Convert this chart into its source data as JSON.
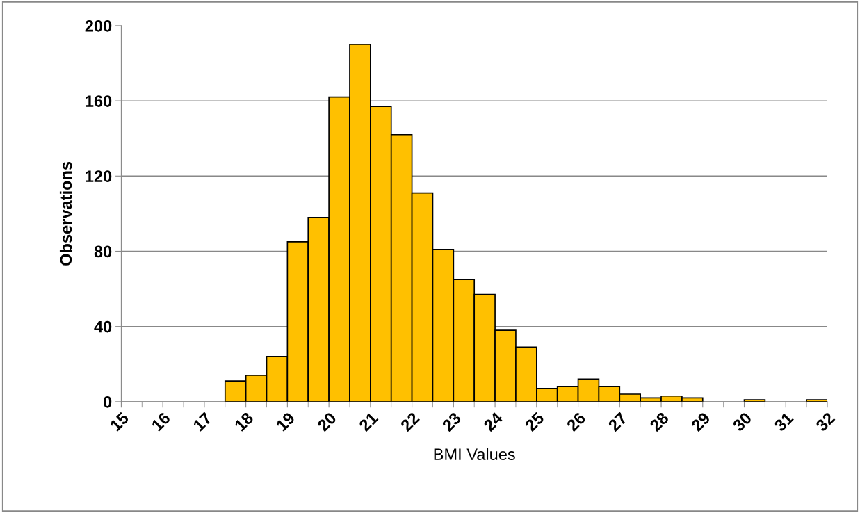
{
  "chart_data": {
    "type": "histogram",
    "xlabel": "BMI Values",
    "ylabel": "Observations",
    "bins": [
      15,
      15.5,
      16,
      16.5,
      17,
      17.5,
      18,
      18.5,
      19,
      19.5,
      20,
      20.5,
      21,
      21.5,
      22,
      22.5,
      23,
      23.5,
      24,
      24.5,
      25,
      25.5,
      26,
      26.5,
      27,
      27.5,
      28,
      28.5,
      29,
      29.5,
      30,
      30.5,
      31,
      31.5,
      32
    ],
    "values": [
      0,
      0,
      0,
      0,
      0,
      11,
      14,
      24,
      85,
      98,
      162,
      190,
      157,
      142,
      111,
      81,
      65,
      57,
      38,
      29,
      7,
      8,
      12,
      8,
      4,
      2,
      3,
      2,
      0,
      0,
      1,
      0,
      0,
      1
    ],
    "color": "#ffc000",
    "xlim": [
      15,
      32
    ],
    "xticks": [
      15,
      16,
      17,
      18,
      19,
      20,
      21,
      22,
      23,
      24,
      25,
      26,
      27,
      28,
      29,
      30,
      31,
      32
    ],
    "ylim": [
      0,
      200
    ],
    "yticks": [
      0,
      40,
      80,
      120,
      160,
      200
    ],
    "grid": "y"
  }
}
